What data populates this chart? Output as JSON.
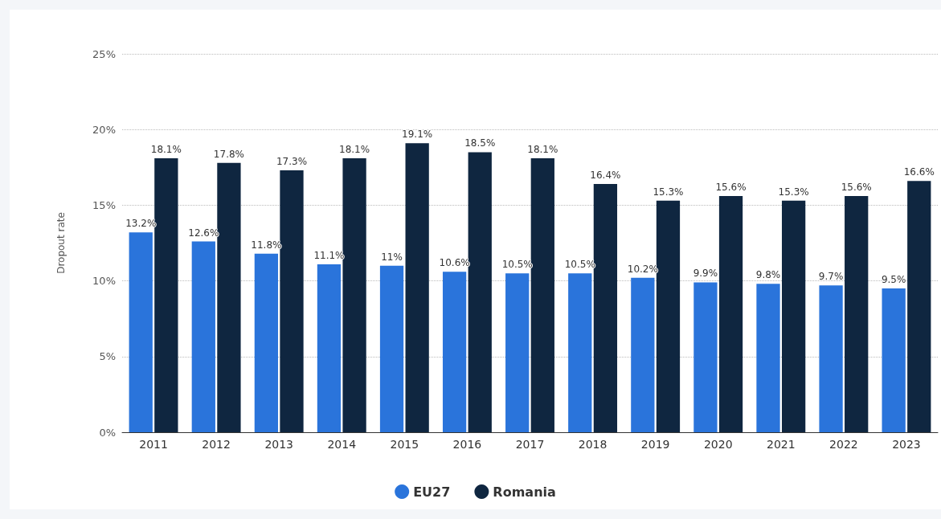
{
  "chart_data": {
    "type": "bar",
    "ylabel": "Dropout rate",
    "categories": [
      "2011",
      "2012",
      "2013",
      "2014",
      "2015",
      "2016",
      "2017",
      "2018",
      "2019",
      "2020",
      "2021",
      "2022",
      "2023"
    ],
    "series": [
      {
        "name": "EU27",
        "color": "#2a74db",
        "values": [
          13.2,
          12.6,
          11.8,
          11.1,
          11,
          10.6,
          10.5,
          10.5,
          10.2,
          9.9,
          9.8,
          9.7,
          9.5
        ],
        "value_labels": [
          "13.2%",
          "12.6%",
          "11.8%",
          "11.1%",
          "11%",
          "10.6%",
          "10.5%",
          "10.5%",
          "10.2%",
          "9.9%",
          "9.8%",
          "9.7%",
          "9.5%"
        ]
      },
      {
        "name": "Romania",
        "color": "#0f2640",
        "values": [
          18.1,
          17.8,
          17.3,
          18.1,
          19.1,
          18.5,
          18.1,
          16.4,
          15.3,
          15.6,
          15.3,
          15.6,
          16.6
        ],
        "value_labels": [
          "18.1%",
          "17.8%",
          "17.3%",
          "18.1%",
          "19.1%",
          "18.5%",
          "18.1%",
          "16.4%",
          "15.3%",
          "15.6%",
          "15.3%",
          "15.6%",
          "16.6%"
        ]
      }
    ],
    "ylim": [
      0,
      25
    ],
    "yticks": [
      {
        "value": 0,
        "label": "0%"
      },
      {
        "value": 5,
        "label": "5%"
      },
      {
        "value": 10,
        "label": "10%"
      },
      {
        "value": 15,
        "label": "15%"
      },
      {
        "value": 20,
        "label": "20%"
      },
      {
        "value": 25,
        "label": "25%"
      }
    ],
    "grid": "y",
    "legend": "bottom"
  }
}
